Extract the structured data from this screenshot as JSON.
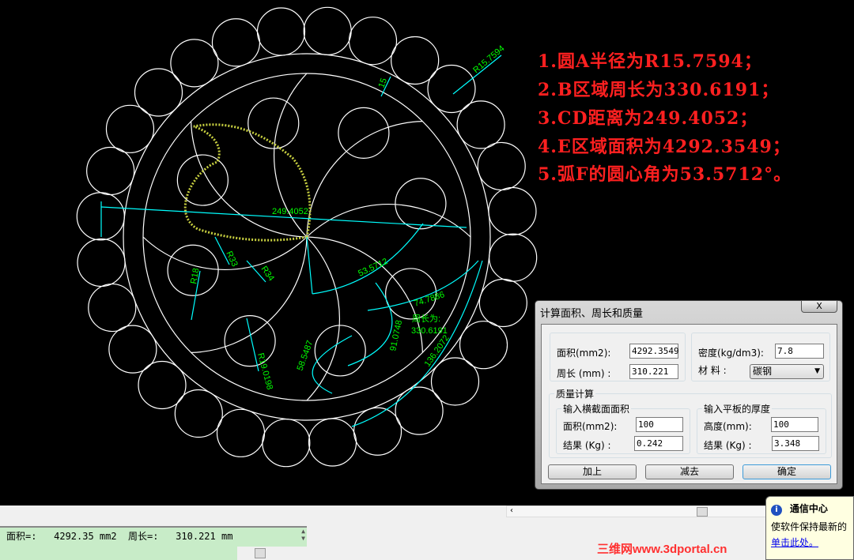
{
  "colors": {
    "drawing": "#ffffff",
    "dimension": "#00ffff",
    "dim_text": "#00ff00",
    "note": "#ff2020",
    "command_bg": "#c8ecc8"
  },
  "notes": [
    "1.圆A半径为R15.7594；",
    "2.B区域周长为330.6191；",
    "3.CD距离为249.4052；",
    "4.E区域面积为4292.3549；",
    "5.弧F的圆心角为53.5712°。"
  ],
  "dims": {
    "r_a": "R15.7594",
    "d15": "15",
    "cd": "249.4052",
    "angle": "53.5712",
    "arc1": "74.7886",
    "arc2": "91.0748",
    "arc3": "58.5487",
    "arc4": "136.2072",
    "perim_label": "周长为:",
    "perim_value": "330.6191",
    "r33": "R33",
    "r34": "R34",
    "r18": "R18",
    "r19": "R19.0198"
  },
  "dialog": {
    "title": "计算面积、周长和质量",
    "close": "X",
    "area_label": "面积(mm2):",
    "area_value": "4292.3549",
    "perim_label": "周长 (mm) :",
    "perim_value": "310.221",
    "density_label": "密度(kg/dm3):",
    "density_value": "7.8",
    "material_label": "材 料  :",
    "material_value": "碳钢",
    "mass_group": "质量计算",
    "section_group": "输入横截面面积",
    "section_area_label": "面积(mm2):",
    "section_area_value": "100",
    "section_result_label": "结果 (Kg) :",
    "section_result_value": "0.242",
    "plate_group": "输入平板的厚度",
    "plate_height_label": "高度(mm):",
    "plate_height_value": "100",
    "plate_result_label": "结果 (Kg) :",
    "plate_result_value": "3.348",
    "btn_add": "加上",
    "btn_sub": "减去",
    "btn_ok": "确定"
  },
  "command": {
    "line": "面积=:   4292.35 mm2  周长=:   310.221 mm"
  },
  "balloon": {
    "icon": "info-icon",
    "title": "通信中心",
    "text": "使软件保持最新的",
    "link": "单击此处。"
  },
  "watermark": "三维网www.3dportal.cn"
}
